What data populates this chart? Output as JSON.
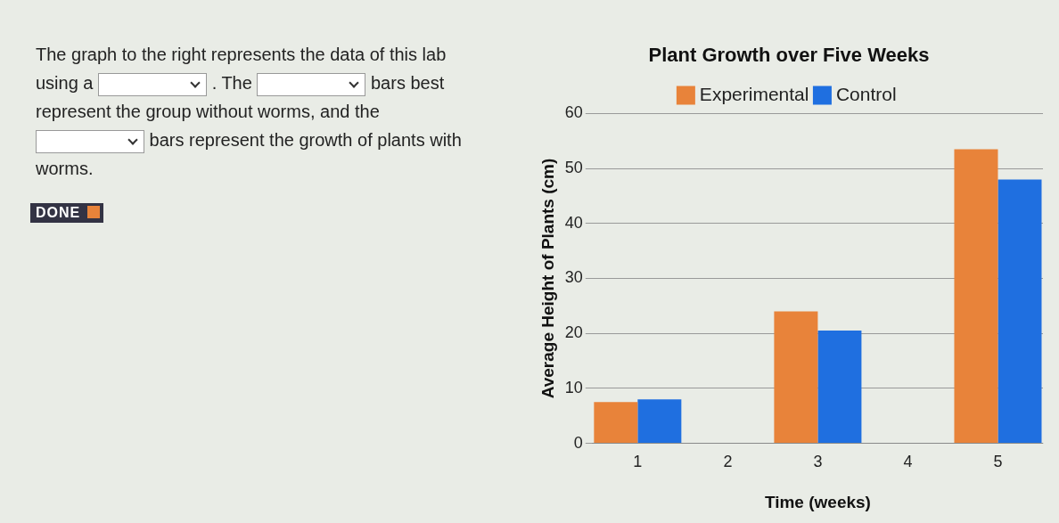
{
  "chart_data": {
    "type": "bar",
    "title": "Plant Growth over Five Weeks",
    "xlabel": "Time (weeks)",
    "ylabel": "Average Height of Plants (cm)",
    "categories": [
      "1",
      "2",
      "3",
      "4",
      "5"
    ],
    "series": [
      {
        "name": "Experimental",
        "color": "#e8833a",
        "values": [
          7.5,
          null,
          24,
          null,
          53.5
        ]
      },
      {
        "name": "Control",
        "color": "#1f6fe0",
        "values": [
          8,
          null,
          20.5,
          null,
          48
        ]
      }
    ],
    "ylim": [
      0,
      60
    ],
    "yticks": [
      0,
      10,
      20,
      30,
      40,
      50,
      60
    ],
    "grid": "y",
    "legend": "top",
    "marker": "square",
    "annotations": [
      "The graph to the right represents the data of this lab using a",
      ". The",
      "bars best represent the group without worms, and the",
      "bars represent the growth of plants with worms.",
      "DONE"
    ]
  }
}
